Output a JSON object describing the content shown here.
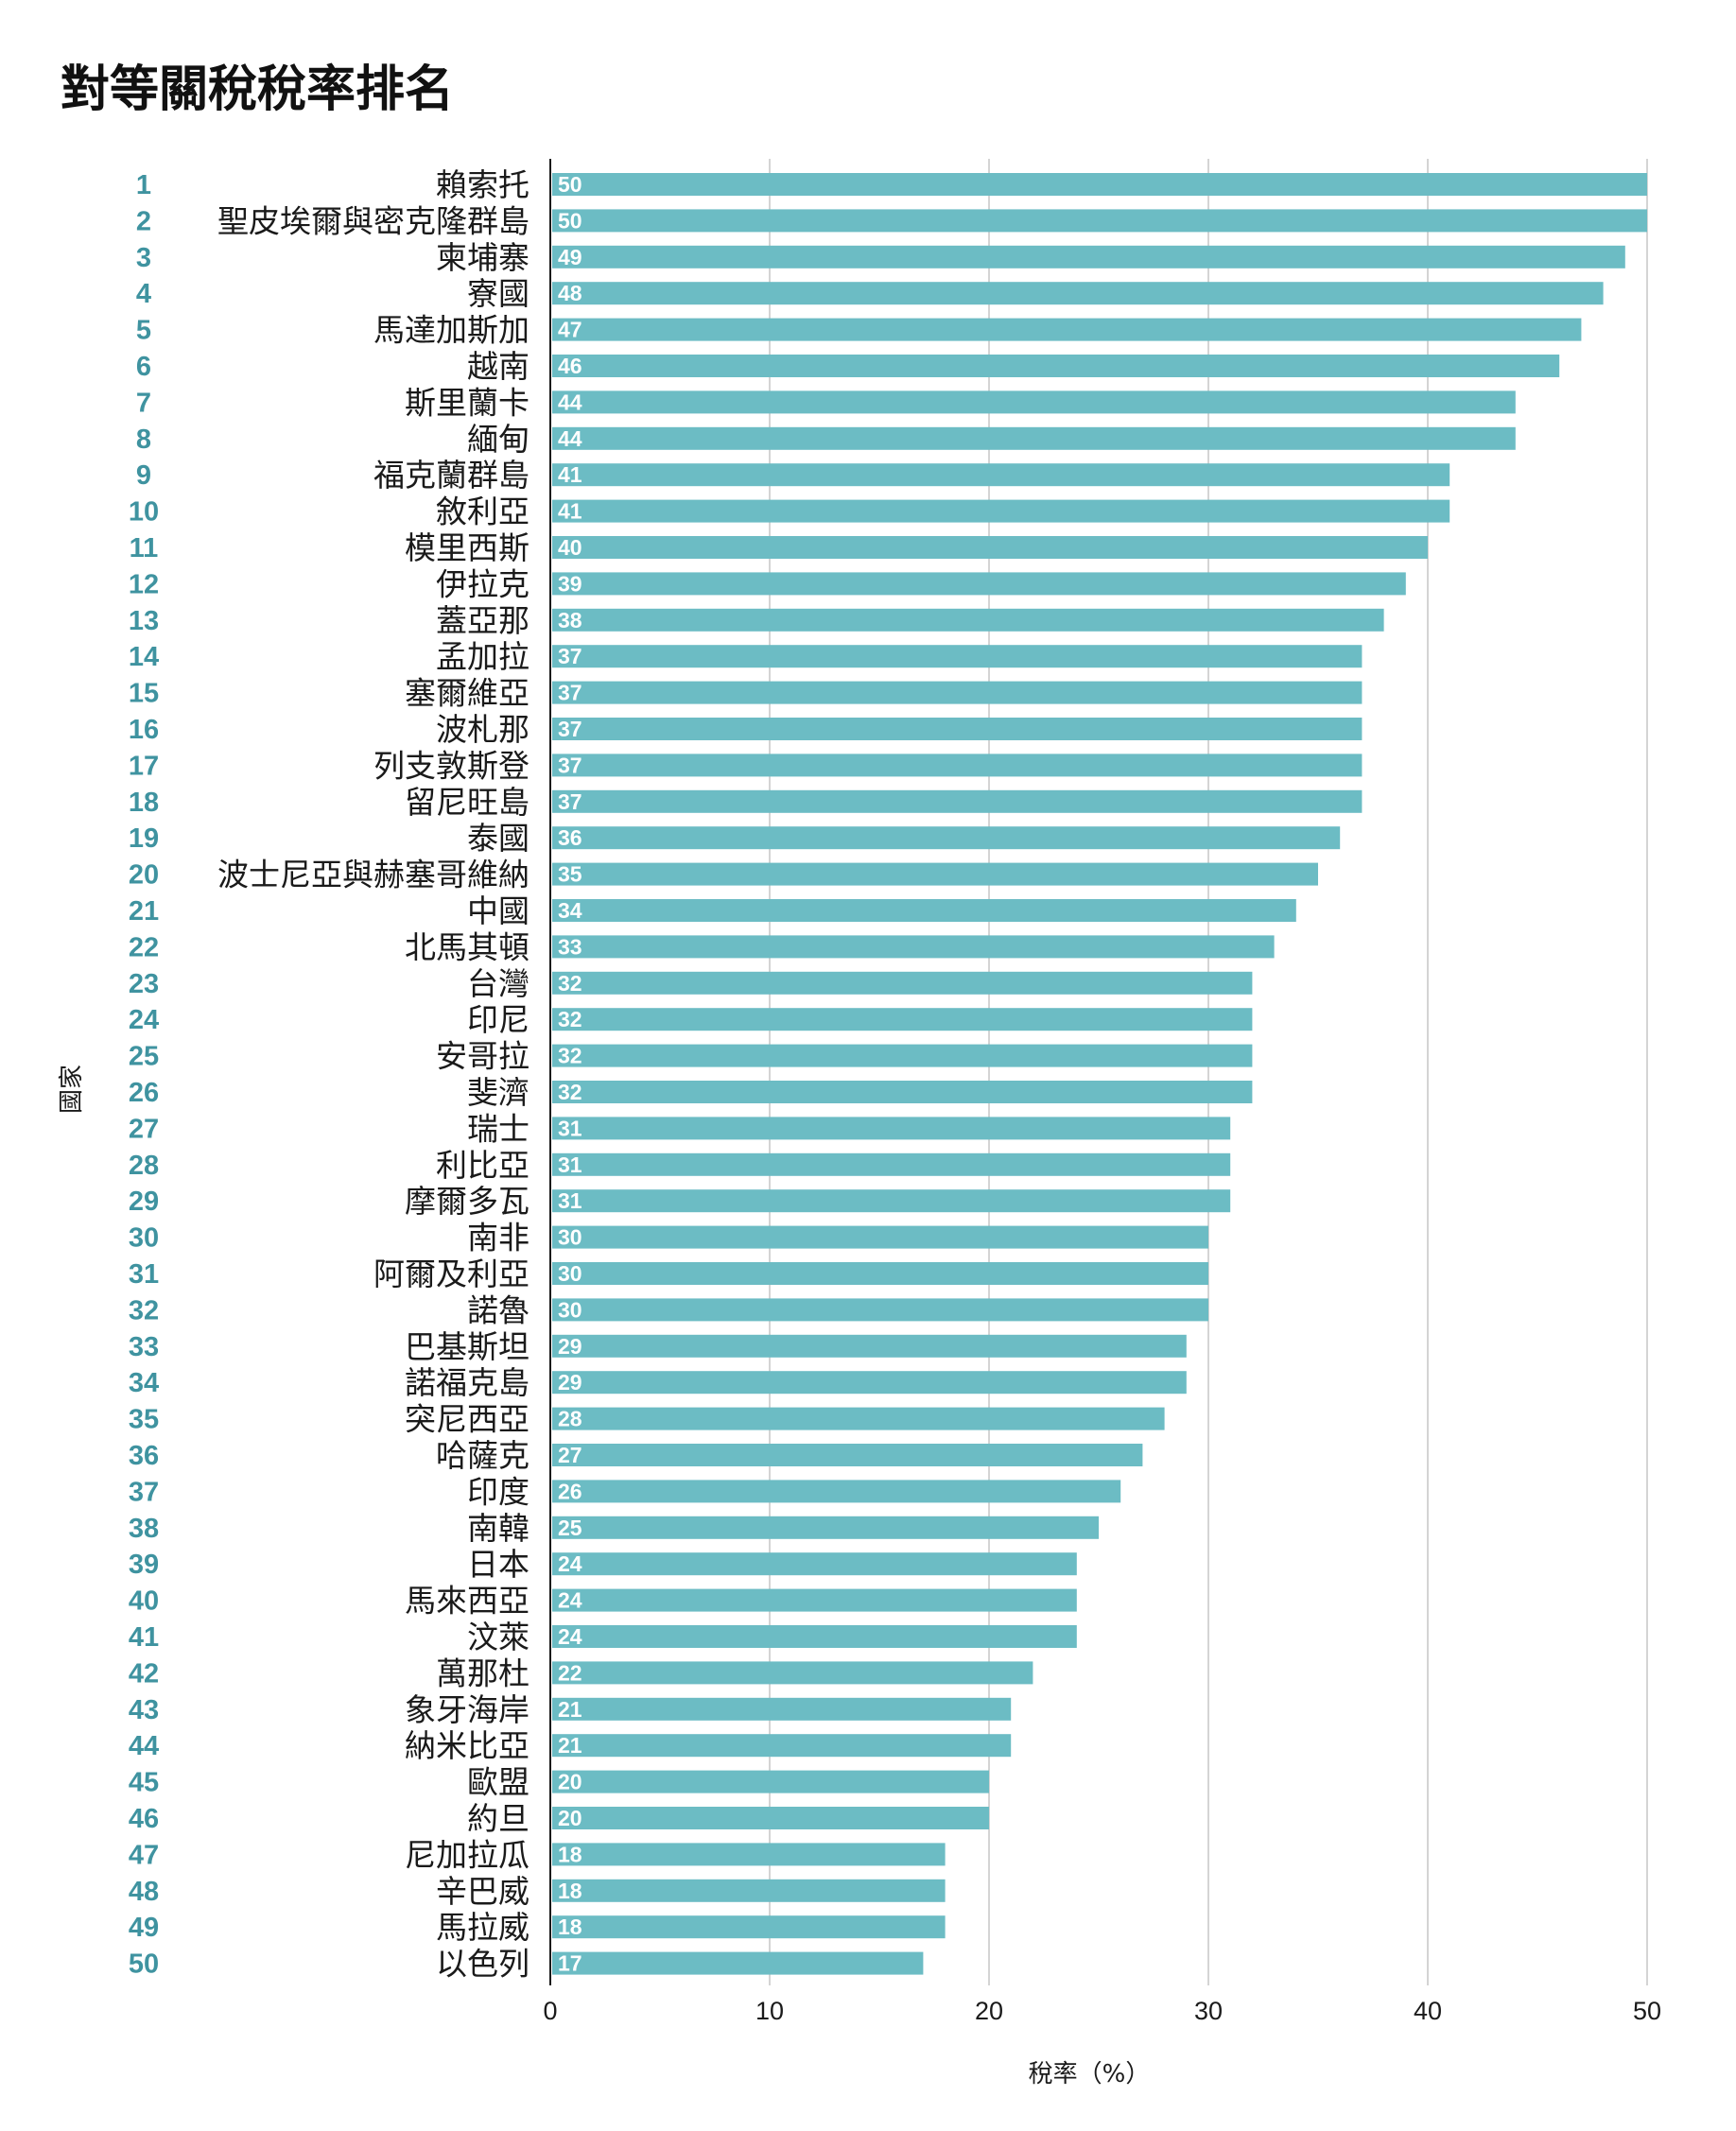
{
  "chart_data": {
    "type": "bar",
    "orientation": "horizontal",
    "title": "對等關稅稅率排名",
    "xlabel": "稅率（%）",
    "ylabel": "國家",
    "xlim": [
      0,
      50
    ],
    "xticks": [
      0,
      10,
      20,
      30,
      40,
      50
    ],
    "grid": true,
    "bar_color": "#6cbcc4",
    "rank_color": "#3f93a0",
    "ranks": [
      1,
      2,
      3,
      4,
      5,
      6,
      7,
      8,
      9,
      10,
      11,
      12,
      13,
      14,
      15,
      16,
      17,
      18,
      19,
      20,
      21,
      22,
      23,
      24,
      25,
      26,
      27,
      28,
      29,
      30,
      31,
      32,
      33,
      34,
      35,
      36,
      37,
      38,
      39,
      40,
      41,
      42,
      43,
      44,
      45,
      46,
      47,
      48,
      49,
      50
    ],
    "categories": [
      "賴索托",
      "聖皮埃爾與密克隆群島",
      "柬埔寨",
      "寮國",
      "馬達加斯加",
      "越南",
      "斯里蘭卡",
      "緬甸",
      "福克蘭群島",
      "敘利亞",
      "模里西斯",
      "伊拉克",
      "蓋亞那",
      "孟加拉",
      "塞爾維亞",
      "波札那",
      "列支敦斯登",
      "留尼旺島",
      "泰國",
      "波士尼亞與赫塞哥維納",
      "中國",
      "北馬其頓",
      "台灣",
      "印尼",
      "安哥拉",
      "斐濟",
      "瑞士",
      "利比亞",
      "摩爾多瓦",
      "南非",
      "阿爾及利亞",
      "諾魯",
      "巴基斯坦",
      "諾福克島",
      "突尼西亞",
      "哈薩克",
      "印度",
      "南韓",
      "日本",
      "馬來西亞",
      "汶萊",
      "萬那杜",
      "象牙海岸",
      "納米比亞",
      "歐盟",
      "約旦",
      "尼加拉瓜",
      "辛巴威",
      "馬拉威",
      "以色列"
    ],
    "values": [
      50,
      50,
      49,
      48,
      47,
      46,
      44,
      44,
      41,
      41,
      40,
      39,
      38,
      37,
      37,
      37,
      37,
      37,
      36,
      35,
      34,
      33,
      32,
      32,
      32,
      32,
      31,
      31,
      31,
      30,
      30,
      30,
      29,
      29,
      28,
      27,
      26,
      25,
      24,
      24,
      24,
      22,
      21,
      21,
      20,
      20,
      18,
      18,
      18,
      17
    ]
  }
}
